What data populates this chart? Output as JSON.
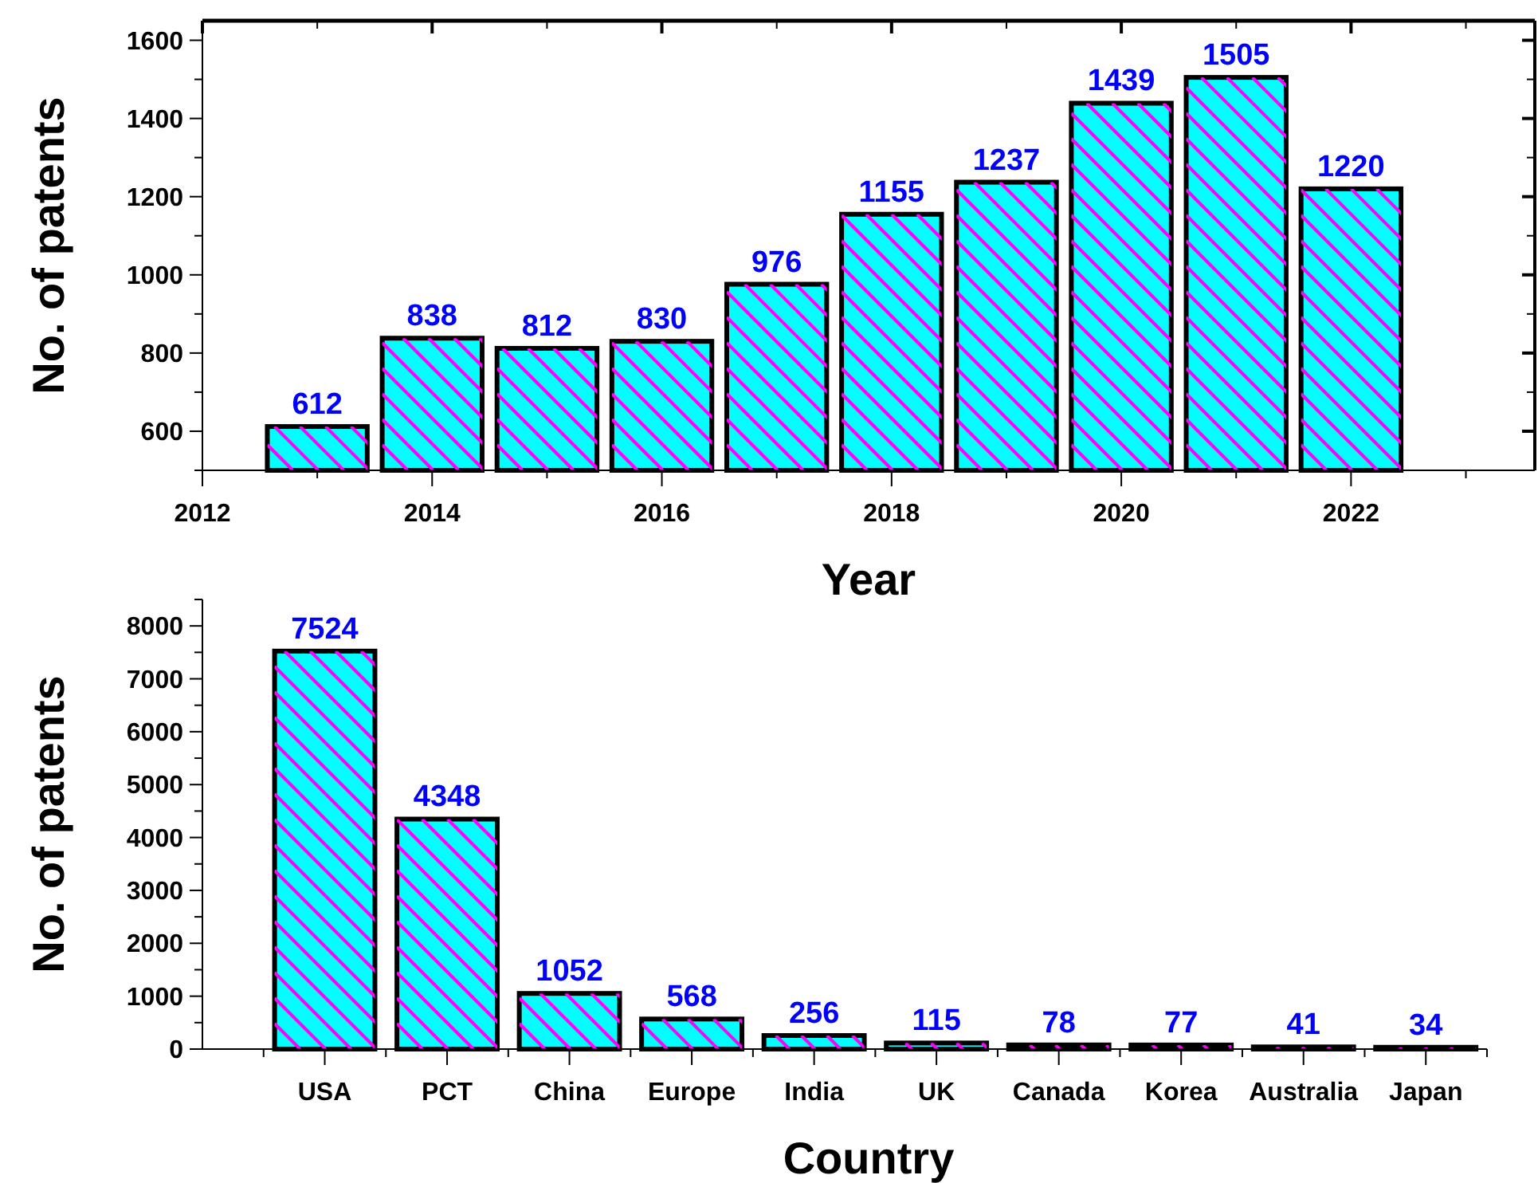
{
  "chart_data": [
    {
      "type": "bar",
      "xlabel": "Year",
      "ylabel": "No. of patents",
      "x": [
        2013,
        2014,
        2015,
        2016,
        2017,
        2018,
        2019,
        2020,
        2021,
        2022
      ],
      "values": [
        612,
        838,
        812,
        830,
        976,
        1155,
        1237,
        1439,
        1505,
        1220
      ],
      "color": "#00ffff",
      "data_labels": true,
      "xlim": [
        2012,
        2023.6
      ],
      "xticks": [
        2012,
        2014,
        2016,
        2018,
        2020,
        2022
      ],
      "ylim": [
        500,
        1650
      ],
      "yticks": [
        600,
        800,
        1000,
        1200,
        1400,
        1600
      ],
      "grid": false
    },
    {
      "type": "bar",
      "xlabel": "Country",
      "ylabel": "No. of patents",
      "categories": [
        "USA",
        "PCT",
        "China",
        "Europe",
        "India",
        "UK",
        "Canada",
        "Korea",
        "Australia",
        "Japan"
      ],
      "values": [
        7524,
        4348,
        1052,
        568,
        256,
        115,
        78,
        77,
        41,
        34
      ],
      "color": "#00ffff",
      "data_labels": true,
      "ylim": [
        0,
        8500
      ],
      "yticks": [
        0,
        1000,
        2000,
        3000,
        4000,
        5000,
        6000,
        7000,
        8000
      ],
      "grid": false
    }
  ]
}
